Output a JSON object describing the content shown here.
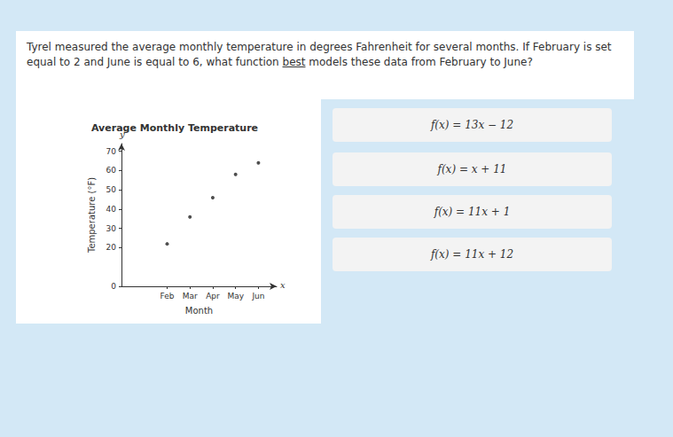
{
  "question": [
    {
      "text": "Tyrel measured the average monthly temperature in degrees Fahrenheit for several months. If February is set equal to 2 and June is equal to 6, what function "
    },
    {
      "text": "best",
      "underline": true
    },
    {
      "text": " models these data from February to June?"
    }
  ],
  "options": [
    "f(x) = 13x − 12",
    "f(x) = x + 11",
    "f(x) = 11x + 1",
    "f(x) = 11x + 12"
  ],
  "chart_data": {
    "type": "scatter",
    "title": "Average Monthly Temperature",
    "xlabel": "Month",
    "ylabel": "Temperature (°F)",
    "x_symbol": "x",
    "y_symbol": "y",
    "x": [
      2,
      3,
      4,
      5,
      6
    ],
    "values": [
      22,
      36,
      46,
      58,
      64
    ],
    "color": "#222222",
    "marker": "circle",
    "xlim": [
      0,
      6.8
    ],
    "xticks": [
      {
        "value": 2,
        "label": "Feb"
      },
      {
        "value": 3,
        "label": "Mar"
      },
      {
        "value": 4,
        "label": "Apr"
      },
      {
        "value": 5,
        "label": "May"
      },
      {
        "value": 6,
        "label": "Jun"
      }
    ],
    "ylim": [
      0,
      74
    ],
    "yticks": [
      0,
      20,
      30,
      40,
      50,
      60,
      70
    ],
    "grid": false
  }
}
